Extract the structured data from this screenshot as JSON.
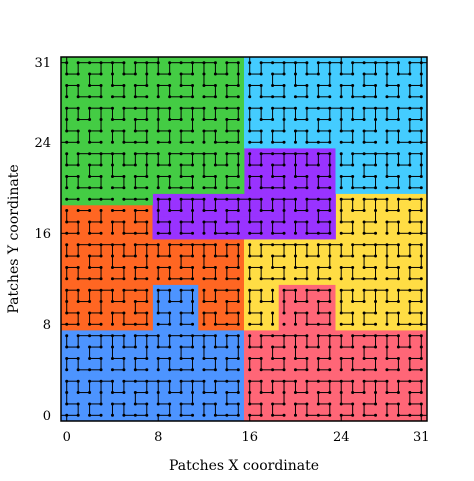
{
  "chart_data": {
    "type": "grid-partition",
    "xlabel": "Patches X coordinate",
    "ylabel": "Patches Y coordinate",
    "xlim": [
      0,
      31
    ],
    "ylim": [
      0,
      31
    ],
    "x_ticks": [
      0,
      8,
      16,
      24,
      31
    ],
    "y_ticks": [
      0,
      8,
      16,
      24,
      31
    ],
    "grid_size": 32,
    "regions": [
      {
        "id": "blue",
        "color": "#4d94ff",
        "rects": [
          [
            0,
            0,
            15,
            7
          ],
          [
            8,
            8,
            11,
            11
          ],
          [
            12,
            8,
            12,
            9
          ]
        ]
      },
      {
        "id": "red",
        "color": "#ff6677",
        "rects": [
          [
            16,
            0,
            31,
            7
          ],
          [
            19,
            8,
            23,
            11
          ],
          [
            24,
            8,
            24,
            0
          ]
        ]
      },
      {
        "id": "orange",
        "color": "#ff6622",
        "rects": [
          [
            0,
            8,
            7,
            19
          ],
          [
            3,
            20,
            5,
            21
          ],
          [
            8,
            12,
            15,
            15
          ],
          [
            12,
            10,
            15,
            11
          ],
          [
            12,
            8,
            14,
            9
          ],
          [
            15,
            8,
            15,
            11
          ]
        ]
      },
      {
        "id": "yellow",
        "color": "#ffdd44",
        "rects": [
          [
            16,
            8,
            18,
            11
          ],
          [
            16,
            12,
            23,
            15
          ],
          [
            24,
            8,
            31,
            19
          ],
          [
            25,
            20,
            27,
            21
          ],
          [
            16,
            10,
            18,
            8
          ]
        ]
      },
      {
        "id": "purple",
        "color": "#9933ff",
        "rects": [
          [
            8,
            16,
            23,
            23
          ],
          [
            12,
            24,
            18,
            24
          ],
          [
            13,
            25,
            13,
            25
          ],
          [
            18,
            25,
            18,
            25
          ]
        ]
      },
      {
        "id": "green",
        "color": "#44cc44",
        "rects": [
          [
            0,
            20,
            15,
            31
          ],
          [
            0,
            19,
            7,
            19
          ]
        ]
      },
      {
        "id": "cyan",
        "color": "#44ccff",
        "rects": [
          [
            16,
            24,
            31,
            31
          ],
          [
            24,
            20,
            31,
            23
          ]
        ]
      }
    ]
  },
  "colors": {
    "grid_line": "#000000",
    "frame": "#000000",
    "background": "#ffffff"
  }
}
